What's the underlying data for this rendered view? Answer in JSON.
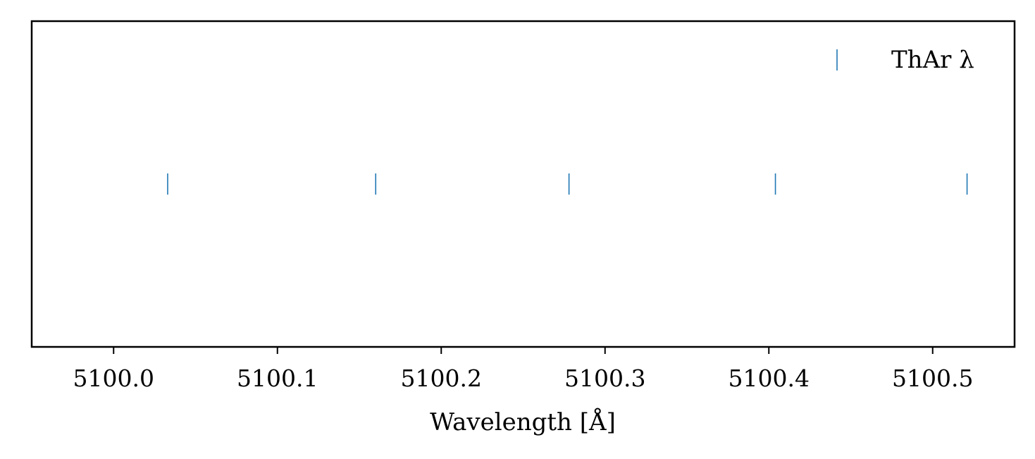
{
  "chart_data": {
    "type": "scatter",
    "marker": "vertical-line",
    "color": "#1f77b4",
    "series": [
      {
        "name": "ThAr λ",
        "x": [
          5100.033,
          5100.16,
          5100.278,
          5100.404,
          5100.521
        ],
        "y": [
          0,
          0,
          0,
          0,
          0
        ]
      }
    ],
    "xlabel": "Wavelength [Å]",
    "ylabel": "",
    "title": "",
    "xlim": [
      5099.95,
      5100.55
    ],
    "ylim": [
      -1,
      1
    ],
    "xticks": [
      5100.0,
      5100.1,
      5100.2,
      5100.3,
      5100.4,
      5100.5
    ],
    "xtick_labels": [
      "5100.0",
      "5100.1",
      "5100.2",
      "5100.3",
      "5100.4",
      "5100.5"
    ],
    "yticks_visible": false,
    "grid": false,
    "legend": {
      "position": "top-right",
      "frame": false
    }
  }
}
